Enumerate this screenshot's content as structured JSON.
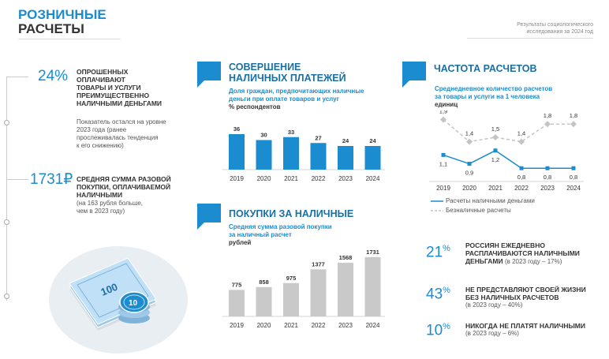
{
  "header": {
    "title_line1": "РОЗНИЧНЫЕ",
    "title_line2": "РАСЧЕТЫ",
    "source_line1": "Результаты социологического",
    "source_line2": "исследования за 2024 год"
  },
  "left": {
    "stat1": {
      "value": "24%",
      "caption_line1": "ОПРОШЕННЫХ",
      "caption_line2": "ОПЛАЧИВАЮТ",
      "caption_line3": "ТОВАРЫ И УСЛУГИ",
      "caption_line4": "ПРЕИМУЩЕСТВЕННО",
      "caption_line5": "НАЛИЧНЫМИ ДЕНЬГАМИ",
      "note_line1": "Показатель остался на уровне",
      "note_line2": "2023 года (ранее",
      "note_line3": "прослеживалась тенденция",
      "note_line4": "к его снижению)"
    },
    "stat2": {
      "value": "1731₽",
      "caption_line1": "СРЕДНЯЯ СУММА РАЗОВОЙ",
      "caption_line2": "ПОКУПКИ, ОПЛАЧИВАЕМОЙ",
      "caption_line3": "НАЛИЧНЫМИ",
      "note_line1": "(на 163 рубля больше,",
      "note_line2": "чем в 2023 году)"
    },
    "illustration": {
      "banknote_label": "100",
      "coin_label": "10"
    }
  },
  "cash_payments": {
    "title_line1": "СОВЕРШЕНИЕ",
    "title_line2": "НАЛИЧНЫХ ПЛАТЕЖЕЙ",
    "subtitle_line1": "Доля граждан, предпочитающих наличные",
    "subtitle_line2": "деньги при оплате товаров и услуг",
    "unit": "% респондентов"
  },
  "cash_purchases": {
    "title": "ПОКУПКИ ЗА НАЛИЧНЫЕ",
    "subtitle_line1": "Средняя сумма разовой покупки",
    "subtitle_line2": "за наличный расчет",
    "unit": "рублей"
  },
  "frequency": {
    "title": "ЧАСТОТА РАСЧЕТОВ",
    "subtitle_line1": "Среднедневное количество расчетов",
    "subtitle_line2": "за товары и услуги на 1 человека",
    "unit": "единиц",
    "legend_cash": "Расчеты наличными деньгами",
    "legend_noncash": "Безналичные расчеты"
  },
  "right_stats": [
    {
      "value": "21",
      "sup": "%",
      "caption_line1": "РОССИЯН ЕЖЕДНЕВНО",
      "caption_line2": "РАСПЛАЧИВАЮТСЯ НАЛИЧНЫМИ",
      "caption_line3": "ДЕНЬГАМИ",
      "note": "(в 2023 году – 17%)"
    },
    {
      "value": "43",
      "sup": "%",
      "caption_line1": "НЕ ПРЕДСТАВЛЯЮТ СВОЕЙ ЖИЗНИ",
      "caption_line2": "БЕЗ НАЛИЧНЫХ РАСЧЕТОВ",
      "caption_line3": "",
      "note": "(в 2023 году – 40%)"
    },
    {
      "value": "10",
      "sup": "%",
      "caption_line1": "НИКОГДА НЕ ПЛАТЯТ НАЛИЧНЫМИ",
      "caption_line2": "",
      "caption_line3": "",
      "note": "(в 2023 году – 6%)"
    }
  ],
  "colors": {
    "accent": "#1a8ccf",
    "gray_bar": "#c9c9c9",
    "noncash_line": "#c4c4c4"
  },
  "chart_data": [
    {
      "type": "bar",
      "categories": [
        "2019",
        "2020",
        "2021",
        "2022",
        "2023",
        "2024"
      ],
      "values": [
        36,
        30,
        33,
        27,
        24,
        24
      ],
      "title": "СОВЕРШЕНИЕ НАЛИЧНЫХ ПЛАТЕЖЕЙ",
      "ylabel": "% респондентов",
      "ylim": [
        0,
        40
      ]
    },
    {
      "type": "bar",
      "categories": [
        "2019",
        "2020",
        "2021",
        "2022",
        "2023",
        "2024"
      ],
      "values": [
        775,
        858,
        975,
        1377,
        1568,
        1731
      ],
      "title": "ПОКУПКИ ЗА НАЛИЧНЫЕ",
      "ylabel": "рублей",
      "ylim": [
        0,
        1800
      ]
    },
    {
      "type": "line",
      "x": [
        "2019",
        "2020",
        "2021",
        "2022",
        "2023",
        "2024"
      ],
      "series": [
        {
          "name": "Расчеты наличными деньгами",
          "values": [
            "1,1",
            "0,9",
            "1,2",
            "0,8",
            "0,8",
            "0,8"
          ],
          "numeric": [
            1.1,
            0.9,
            1.2,
            0.8,
            0.8,
            0.8
          ]
        },
        {
          "name": "Безналичные расчеты",
          "values": [
            "1,9",
            "1,4",
            "1,5",
            "1,4",
            "1,8",
            "1,8"
          ],
          "numeric": [
            1.9,
            1.4,
            1.5,
            1.4,
            1.8,
            1.8
          ]
        }
      ],
      "title": "ЧАСТОТА РАСЧЕТОВ",
      "ylabel": "единиц",
      "ylim": [
        0.5,
        2.0
      ]
    }
  ]
}
